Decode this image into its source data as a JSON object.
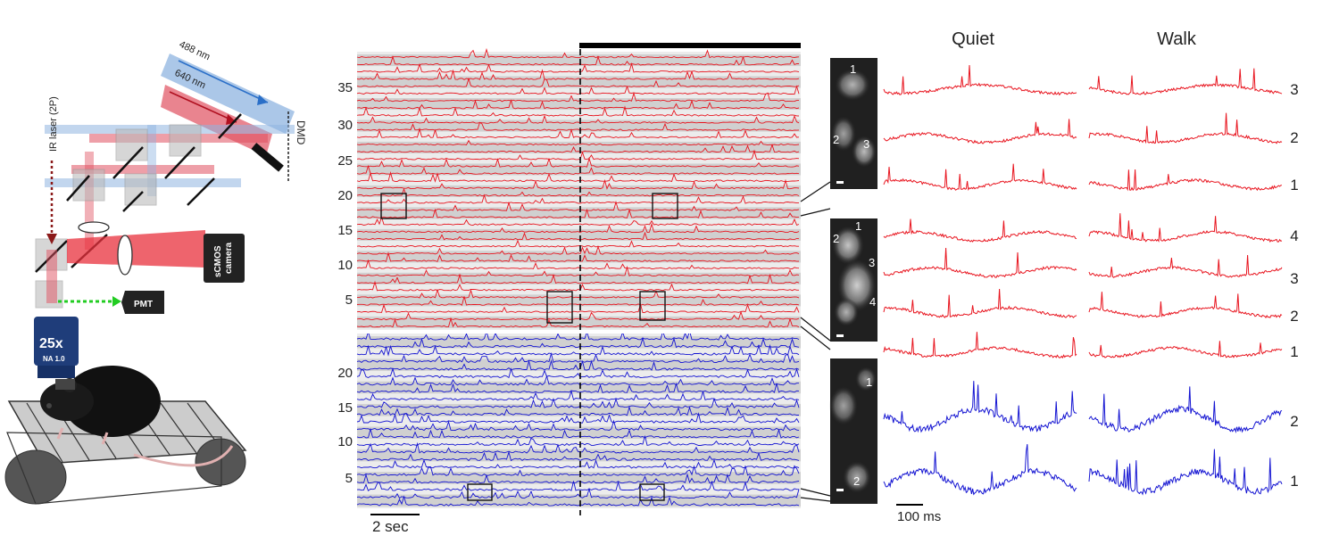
{
  "setup": {
    "laser_488": "488 nm",
    "laser_640": "640 nm",
    "ir_laser": "IR laser (2P)",
    "dmd": "DMD",
    "camera_line1": "sCMOS",
    "camera_line2": "camera",
    "pmt": "PMT",
    "objective_mag": "25x",
    "objective_na": "NA 1.0",
    "colors": {
      "blue_beam": "#8fb4e0",
      "red_beam": "#e05060",
      "ir_beam": "#8b1a1a",
      "pmt_beam": "#22cc22",
      "objective": "#1f3d7a"
    }
  },
  "raster": {
    "red_ticks": [
      "35",
      "30",
      "25",
      "20",
      "15",
      "10",
      "5"
    ],
    "blue_ticks": [
      "20",
      "15",
      "10",
      "5"
    ],
    "red_count": 38,
    "blue_count": 23,
    "scale_label": "2 sec",
    "colors": {
      "red": "#e8141e",
      "blue": "#1414d2",
      "band": "#d0d0d0",
      "bg": "#ececec"
    }
  },
  "cells": {
    "group1_labels": [
      "1",
      "2",
      "3"
    ],
    "group2_labels": [
      "1",
      "2",
      "3",
      "4"
    ],
    "group3_labels": [
      "1",
      "2"
    ]
  },
  "traces": {
    "quiet_title": "Quiet",
    "walk_title": "Walk",
    "red_row_labels": [
      "3",
      "2",
      "1",
      "4",
      "3",
      "2",
      "1"
    ],
    "blue_row_labels": [
      "2",
      "1"
    ],
    "scale_label": "100 ms"
  }
}
